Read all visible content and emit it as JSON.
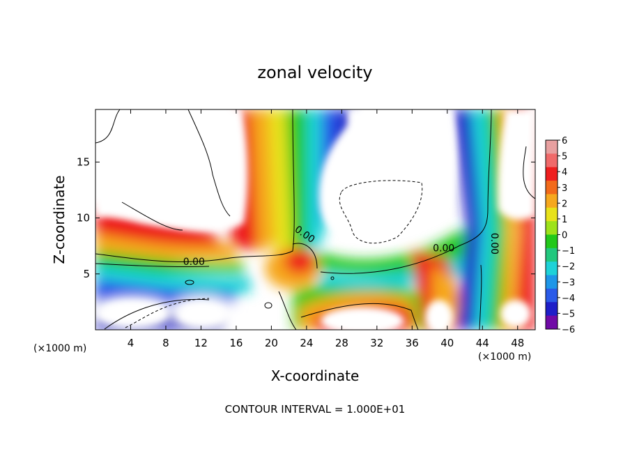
{
  "chart_data": {
    "type": "heatmap",
    "title": "zonal velocity",
    "xlabel": "X-coordinate",
    "ylabel": "Z-coordinate",
    "x_unit_label": "(×1000 m)",
    "x_unit_label_right": "(×1000 m)",
    "xlim": [
      0,
      50
    ],
    "ylim": [
      0,
      19.7
    ],
    "x_ticks": [
      4,
      8,
      12,
      16,
      20,
      24,
      28,
      32,
      36,
      40,
      44,
      48
    ],
    "y_ticks": [
      5,
      10,
      15
    ],
    "x_tick_labels": [
      "4",
      "8",
      "12",
      "16",
      "20",
      "24",
      "28",
      "32",
      "36",
      "40",
      "44",
      "48"
    ],
    "y_tick_labels": [
      "5",
      "10",
      "15"
    ],
    "colorbar": {
      "min": -6,
      "max": 6,
      "ticks": [
        "6",
        "5",
        "4",
        "3",
        "2",
        "1",
        "0",
        "−1",
        "−2",
        "−3",
        "−4",
        "−5",
        "−6"
      ],
      "colors": [
        "#e8a0a0",
        "#f06a6a",
        "#ee1e1e",
        "#f26a1a",
        "#f6a81e",
        "#e8e21a",
        "#9ee21a",
        "#22c81a",
        "#22c87e",
        "#1ed2d8",
        "#1e96e8",
        "#2a5ae8",
        "#1e1ec8",
        "#700aa6"
      ]
    },
    "contour_labels": [
      {
        "text": "0.00",
        "x": 11.2,
        "y": 5.8
      },
      {
        "text": "0.00",
        "x": 23.6,
        "y": 8.3
      },
      {
        "text": "0.00",
        "x": 39.6,
        "y": 7.0
      },
      {
        "text": "0.00",
        "x": 45.0,
        "y": 7.7
      }
    ],
    "zero_contour_description": "Wavy zero line near z≈6 across the domain, with near-vertical branches at x≈22–23 and x≈44–45",
    "features": [
      {
        "name": "upper positive band",
        "x_range": [
          17,
          23
        ],
        "z_range": [
          6,
          19.7
        ],
        "value": "0 to 6"
      },
      {
        "name": "upper negative band",
        "x_range": [
          23,
          29
        ],
        "z_range": [
          8,
          19.7
        ],
        "value": "-6 to 0"
      },
      {
        "name": "right column",
        "x_range": [
          41,
          50
        ],
        "z_range": [
          0,
          19.7
        ],
        "value": "-6 to 6"
      },
      {
        "name": "low-level shear layer",
        "x_range": [
          0,
          50
        ],
        "z_range": [
          0,
          8
        ],
        "value": "-6 to 6"
      }
    ],
    "grid": false,
    "legend": "colorbar at right"
  },
  "footer": {
    "contour_note": "CONTOUR INTERVAL = 1.000E+01"
  }
}
